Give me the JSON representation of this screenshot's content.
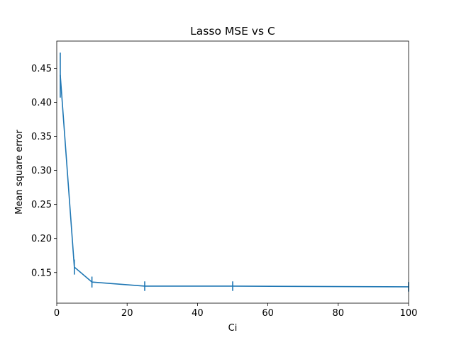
{
  "chart_data": {
    "type": "line",
    "title": "Lasso MSE vs C",
    "xlabel": "Ci",
    "ylabel": "Mean square error",
    "xlim": [
      0,
      100
    ],
    "ylim": [
      0.105,
      0.49
    ],
    "xticks": [
      0,
      20,
      40,
      60,
      80,
      100
    ],
    "yticks": [
      0.15,
      0.2,
      0.25,
      0.3,
      0.35,
      0.4,
      0.45
    ],
    "xtick_labels": [
      "0",
      "20",
      "40",
      "60",
      "80",
      "100"
    ],
    "ytick_labels": [
      "0.15",
      "0.20",
      "0.25",
      "0.30",
      "0.35",
      "0.40",
      "0.45"
    ],
    "grid": false,
    "error_bars": true,
    "series": [
      {
        "color": "#1f77b4",
        "x": [
          1,
          5,
          10,
          25,
          50,
          100
        ],
        "y": [
          0.44,
          0.158,
          0.136,
          0.13,
          0.13,
          0.129
        ],
        "yerr": [
          0.033,
          0.011,
          0.008,
          0.007,
          0.007,
          0.007
        ]
      }
    ]
  }
}
